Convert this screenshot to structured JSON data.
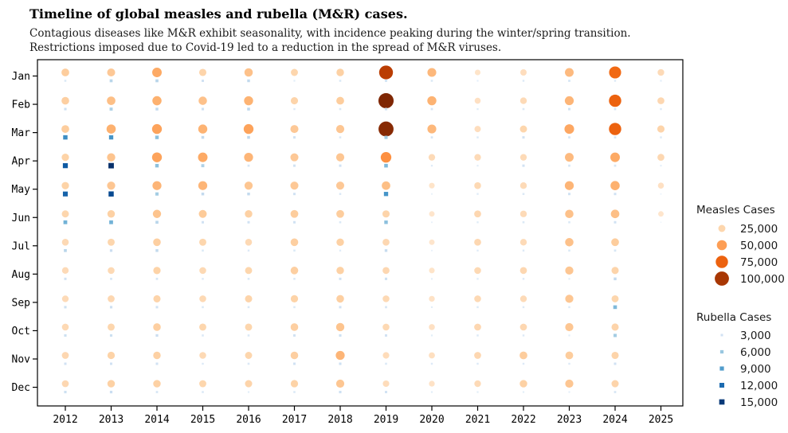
{
  "header": {
    "title": "Timeline of global measles and rubella (M&R) cases.",
    "subtitle_line1": "Contagious diseases like M&R exhibit seasonality, with incidence peaking during the winter/spring transition.",
    "subtitle_line2": "Restrictions imposed due to Covid-19 led to a reduction in the spread of M&R viruses."
  },
  "chart_data": {
    "type": "scatter",
    "title": "Timeline of global measles and rubella (M&R) cases.",
    "x_categories": [
      "2012",
      "2013",
      "2014",
      "2015",
      "2016",
      "2017",
      "2018",
      "2019",
      "2020",
      "2021",
      "2022",
      "2023",
      "2024",
      "2025"
    ],
    "y_categories": [
      "Jan",
      "Feb",
      "Mar",
      "Apr",
      "May",
      "Jun",
      "Jul",
      "Aug",
      "Sep",
      "Oct",
      "Nov",
      "Dec"
    ],
    "grid": false,
    "series": [
      {
        "name": "Measles Cases",
        "marker": "circle",
        "colormap": "Oranges",
        "vmax": 115000,
        "values": [
          [
            30000,
            29000,
            30000,
            27000,
            27000,
            25000,
            23000,
            22000,
            22000,
            23000,
            24000,
            24000
          ],
          [
            32000,
            36000,
            42000,
            34000,
            33000,
            28000,
            25000,
            23000,
            24000,
            25000,
            27000,
            28000
          ],
          [
            45000,
            42000,
            48000,
            48000,
            40000,
            34000,
            29000,
            27000,
            26000,
            29000,
            28000,
            28000
          ],
          [
            26000,
            35000,
            41000,
            45000,
            40000,
            31000,
            25000,
            23000,
            23000,
            25000,
            23000,
            25000
          ],
          [
            35000,
            41000,
            48000,
            40000,
            33000,
            28000,
            23000,
            25000,
            26000,
            25000,
            25000,
            26000
          ],
          [
            25000,
            26000,
            32000,
            32000,
            32000,
            30000,
            29000,
            29000,
            27000,
            29000,
            29000,
            27000
          ],
          [
            28000,
            30000,
            33000,
            33000,
            32000,
            30000,
            28000,
            28000,
            29000,
            34000,
            40000,
            33000
          ],
          [
            95000,
            115000,
            112000,
            56000,
            36000,
            26000,
            24000,
            24000,
            23000,
            23000,
            21000,
            21000
          ],
          [
            39000,
            41000,
            39000,
            22000,
            16000,
            15000,
            15000,
            16000,
            17000,
            18000,
            19000,
            17000
          ],
          [
            16000,
            18000,
            20000,
            22000,
            23000,
            24000,
            24000,
            23000,
            23000,
            24000,
            24000,
            22000
          ],
          [
            20000,
            22000,
            25000,
            22000,
            22000,
            22000,
            22000,
            24000,
            22000,
            24000,
            30000,
            28000
          ],
          [
            38000,
            40000,
            46000,
            38000,
            40000,
            35000,
            35000,
            33000,
            33000,
            33000,
            30000,
            33000
          ],
          [
            72000,
            75000,
            75000,
            45000,
            42000,
            36000,
            30000,
            26000,
            25000,
            26000,
            26000,
            26000
          ],
          [
            22000,
            24000,
            26000,
            24000,
            18000,
            15000,
            null,
            null,
            null,
            null,
            null,
            null
          ]
        ]
      },
      {
        "name": "Rubella Cases",
        "marker": "square",
        "colormap": "Blues",
        "vmax": 15500,
        "values": [
          [
            2200,
            3200,
            10000,
            13000,
            12500,
            7500,
            4500,
            3000,
            3200,
            3300,
            3000,
            3300
          ],
          [
            4500,
            5000,
            9500,
            15500,
            14000,
            7500,
            3500,
            2500,
            3300,
            3300,
            3000,
            3500
          ],
          [
            4500,
            4000,
            6500,
            6500,
            5500,
            4500,
            4000,
            2500,
            3000,
            3500,
            3000,
            2500
          ],
          [
            3000,
            3200,
            4000,
            5000,
            4000,
            3000,
            2200,
            2000,
            2200,
            2200,
            2000,
            2200
          ],
          [
            4000,
            4200,
            4200,
            2500,
            4000,
            3000,
            2000,
            2200,
            2200,
            2200,
            2200,
            1600
          ],
          [
            1600,
            2000,
            3000,
            3000,
            3000,
            3000,
            2200,
            2200,
            2200,
            3000,
            3000,
            2200
          ],
          [
            2200,
            2200,
            2200,
            3000,
            2200,
            2200,
            1800,
            3000,
            3000,
            3200,
            3200,
            3200
          ],
          [
            2800,
            3200,
            5500,
            7000,
            9500,
            6500,
            3800,
            3200,
            2500,
            3000,
            2200,
            3000
          ],
          [
            2200,
            2500,
            2500,
            1800,
            1200,
            1200,
            1200,
            1500,
            1600,
            1600,
            2000,
            1600
          ],
          [
            1500,
            1800,
            2000,
            1600,
            1800,
            1800,
            1800,
            1800,
            2000,
            2000,
            2000,
            1600
          ],
          [
            2000,
            2200,
            3000,
            3000,
            2200,
            2200,
            2000,
            2000,
            2000,
            2000,
            2000,
            1600
          ],
          [
            2500,
            3000,
            2500,
            2500,
            3000,
            2200,
            2200,
            1600,
            2000,
            1600,
            2000,
            1500
          ],
          [
            2000,
            2500,
            2500,
            2500,
            3000,
            3000,
            2500,
            4000,
            7000,
            5500,
            3000,
            2500
          ],
          [
            1600,
            2000,
            2000,
            1500,
            1000,
            800,
            null,
            null,
            null,
            null,
            null,
            null
          ]
        ]
      }
    ],
    "legend": [
      {
        "title": "Measles Cases",
        "marker": "circle",
        "entries": [
          {
            "value": 25000,
            "label": "25,000"
          },
          {
            "value": 50000,
            "label": "50,000"
          },
          {
            "value": 75000,
            "label": "75,000"
          },
          {
            "value": 100000,
            "label": "100,000"
          }
        ]
      },
      {
        "title": "Rubella Cases",
        "marker": "square",
        "entries": [
          {
            "value": 3000,
            "label": "3,000"
          },
          {
            "value": 6000,
            "label": "6,000"
          },
          {
            "value": 9000,
            "label": "9,000"
          },
          {
            "value": 12000,
            "label": "12,000"
          },
          {
            "value": 15000,
            "label": "15,000"
          }
        ]
      }
    ],
    "colors": {
      "oranges_stops": [
        "#FFF5EB",
        "#FEE6CE",
        "#FDD0A2",
        "#FDAE6B",
        "#FD8D3C",
        "#F16913",
        "#D94801",
        "#A63603",
        "#7F2704"
      ],
      "blues_stops": [
        "#F7FBFF",
        "#DEEBF7",
        "#C6DBEF",
        "#9ECAE1",
        "#6BAED6",
        "#4292C6",
        "#2171B5",
        "#08519C",
        "#08306B"
      ],
      "axis": "#000000"
    }
  }
}
